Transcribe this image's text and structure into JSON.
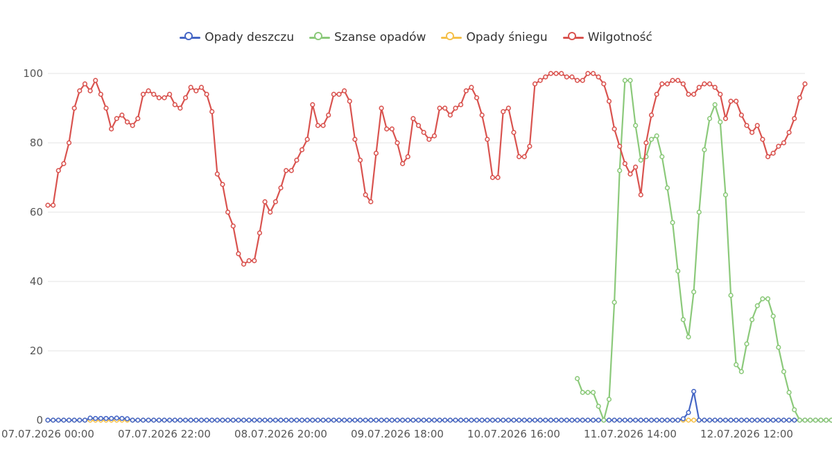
{
  "chart_data": {
    "type": "line",
    "title": "",
    "xlabel": "",
    "ylabel": "",
    "ylim": [
      0,
      100
    ],
    "yticks": [
      0,
      20,
      40,
      60,
      80,
      100
    ],
    "xtick_labels": [
      "07.07.2026 00:00",
      "07.07.2026 22:00",
      "08.07.2026 20:00",
      "09.07.2026 18:00",
      "10.07.2026 16:00",
      "11.07.2026 14:00",
      "12.07.2026 12:00"
    ],
    "xtick_indices": [
      0,
      22,
      44,
      66,
      88,
      110,
      132
    ],
    "grid": "horizontal",
    "legend_position": "top-center",
    "series": [
      {
        "name": "Opady deszczu",
        "color": "#4566c5",
        "values": [
          0,
          0,
          0,
          0,
          0,
          0,
          0,
          0,
          0.6,
          0.5,
          0.5,
          0.5,
          0.5,
          0.6,
          0.5,
          0.4,
          0,
          0,
          0,
          0,
          0,
          0,
          0,
          0,
          0,
          0,
          0,
          0,
          0,
          0,
          0,
          0,
          0,
          0,
          0,
          0,
          0,
          0,
          0,
          0,
          0,
          0,
          0,
          0,
          0,
          0,
          0,
          0,
          0,
          0,
          0,
          0,
          0,
          0,
          0,
          0,
          0,
          0,
          0,
          0,
          0,
          0,
          0,
          0,
          0,
          0,
          0,
          0,
          0,
          0,
          0,
          0,
          0,
          0,
          0,
          0,
          0,
          0,
          0,
          0,
          0,
          0,
          0,
          0,
          0,
          0,
          0,
          0,
          0,
          0,
          0,
          0,
          0,
          0,
          0,
          0,
          0,
          0,
          0,
          0,
          0,
          0,
          0,
          0,
          0,
          0,
          0,
          0,
          0,
          0,
          0,
          0,
          0,
          0,
          0,
          0,
          0,
          0,
          0,
          0,
          0.4,
          2.2,
          8.3,
          0,
          0,
          0,
          0,
          0,
          0,
          0,
          0,
          0,
          0,
          0,
          0,
          0,
          0,
          0,
          0,
          0,
          0,
          0,
          0,
          0,
          0,
          0,
          0,
          0,
          0,
          0,
          0,
          0,
          0
        ]
      },
      {
        "name": "Szanse opadów",
        "color": "#8bc97a",
        "values": [
          null,
          null,
          null,
          null,
          null,
          null,
          null,
          null,
          null,
          null,
          null,
          null,
          null,
          null,
          null,
          null,
          null,
          null,
          null,
          null,
          null,
          null,
          null,
          null,
          null,
          null,
          null,
          null,
          null,
          null,
          null,
          null,
          null,
          null,
          null,
          null,
          null,
          null,
          null,
          null,
          null,
          null,
          null,
          null,
          null,
          null,
          null,
          null,
          null,
          null,
          null,
          null,
          null,
          null,
          null,
          null,
          null,
          null,
          null,
          null,
          null,
          null,
          null,
          null,
          null,
          null,
          null,
          null,
          null,
          null,
          null,
          null,
          null,
          null,
          null,
          null,
          null,
          null,
          null,
          null,
          null,
          null,
          null,
          null,
          null,
          null,
          null,
          null,
          null,
          null,
          null,
          null,
          null,
          null,
          null,
          null,
          null,
          null,
          null,
          null,
          12,
          8,
          8,
          8,
          4,
          0,
          6,
          34,
          72,
          98,
          98,
          85,
          75,
          76,
          81,
          82,
          76,
          67,
          57,
          43,
          29,
          24,
          37,
          60,
          78,
          87,
          91,
          86,
          65,
          36,
          16,
          14,
          22,
          29,
          33,
          35,
          35,
          30,
          21,
          14,
          8,
          3,
          0,
          0,
          0,
          0,
          0,
          0,
          0,
          0
        ]
      },
      {
        "name": "Opady śniegu",
        "color": "#f5c04a",
        "values": [
          0,
          0,
          0,
          0,
          0,
          0,
          0,
          0,
          0,
          0,
          0,
          0,
          0,
          0,
          0,
          0,
          0,
          0,
          0,
          0,
          0,
          0,
          0,
          0,
          0,
          0,
          0,
          0,
          0,
          0,
          0,
          0,
          0,
          0,
          0,
          0,
          0,
          0,
          0,
          0,
          0,
          0,
          0,
          0,
          0,
          0,
          0,
          0,
          0,
          0,
          0,
          0,
          0,
          0,
          0,
          0,
          0,
          0,
          0,
          0,
          0,
          0,
          0,
          0,
          0,
          0,
          0,
          0,
          0,
          0,
          0,
          0,
          0,
          0,
          0,
          0,
          0,
          0,
          0,
          0,
          0,
          0,
          0,
          0,
          0,
          0,
          0,
          0,
          0,
          0,
          0,
          0,
          0,
          0,
          0,
          0,
          0,
          0,
          0,
          0,
          0,
          0,
          0,
          0,
          0,
          0,
          0,
          0,
          0,
          0,
          0,
          0,
          0,
          0,
          0,
          0,
          0,
          0,
          0,
          0,
          0,
          0,
          0,
          0,
          0,
          0,
          0,
          0,
          0,
          0,
          0,
          0,
          0,
          0,
          0,
          0,
          0,
          0,
          0,
          0,
          0,
          0,
          0,
          0,
          0,
          0,
          0,
          0,
          0,
          0,
          0,
          0,
          0,
          0,
          0,
          0,
          0,
          0,
          0,
          0
        ]
      },
      {
        "name": "Wilgotność",
        "color": "#d9534f",
        "values": [
          62,
          62,
          72,
          74,
          80,
          90,
          95,
          97,
          95,
          98,
          94,
          90,
          84,
          87,
          88,
          86,
          85,
          87,
          94,
          95,
          94,
          93,
          93,
          94,
          91,
          90,
          93,
          96,
          95,
          96,
          94,
          89,
          71,
          68,
          60,
          56,
          48,
          45,
          46,
          46,
          54,
          63,
          60,
          63,
          67,
          72,
          72,
          75,
          78,
          81,
          91,
          85,
          85,
          88,
          94,
          94,
          95,
          92,
          81,
          75,
          65,
          63,
          77,
          90,
          84,
          84,
          80,
          74,
          76,
          87,
          85,
          83,
          81,
          82,
          90,
          90,
          88,
          90,
          91,
          95,
          96,
          93,
          88,
          81,
          70,
          70,
          89,
          90,
          83,
          76,
          76,
          79,
          97,
          98,
          99,
          100,
          100,
          100,
          99,
          99,
          98,
          98,
          100,
          100,
          99,
          97,
          92,
          84,
          79,
          74,
          71,
          73,
          65,
          80,
          88,
          94,
          97,
          97,
          98,
          98,
          97,
          94,
          94,
          96,
          97,
          97,
          96,
          94,
          87,
          92,
          92,
          88,
          85,
          83,
          85,
          81,
          76,
          77,
          79,
          80,
          83,
          87,
          93,
          97
        ]
      }
    ]
  }
}
